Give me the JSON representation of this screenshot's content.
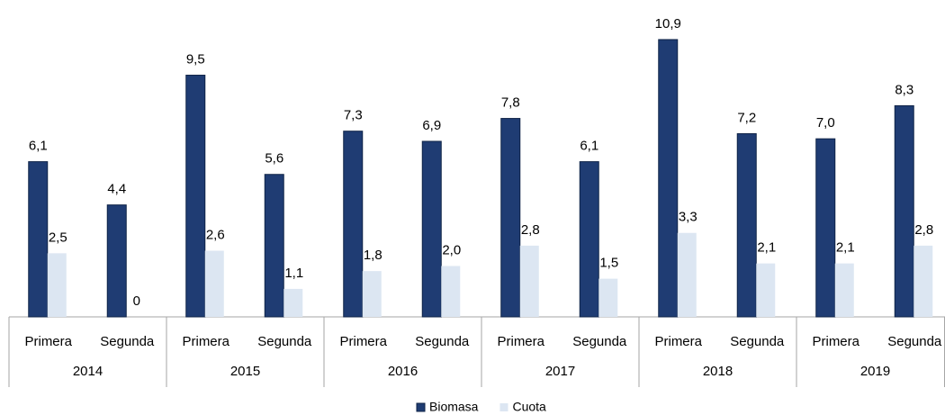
{
  "chart_data": {
    "type": "bar",
    "categories": [
      "Primera",
      "Segunda",
      "Primera",
      "Segunda",
      "Primera",
      "Segunda",
      "Primera",
      "Segunda",
      "Primera",
      "Segunda",
      "Primera",
      "Segunda"
    ],
    "groups": [
      "2014",
      "2015",
      "2016",
      "2017",
      "2018",
      "2019"
    ],
    "series": [
      {
        "name": "Biomasa",
        "color": "#1f3c73",
        "values": [
          6.1,
          4.4,
          9.5,
          5.6,
          7.3,
          6.9,
          7.8,
          6.1,
          10.9,
          7.2,
          7.0,
          8.3
        ],
        "value_labels": [
          "6,1",
          "4,4",
          "9,5",
          "5,6",
          "7,3",
          "6,9",
          "7,8",
          "6,1",
          "10,9",
          "7,2",
          "7,0",
          "8,3"
        ]
      },
      {
        "name": "Cuota",
        "color": "#dce6f2",
        "values": [
          2.5,
          0,
          2.6,
          1.1,
          1.8,
          2.0,
          2.8,
          1.5,
          3.3,
          2.1,
          2.1,
          2.8
        ],
        "value_labels": [
          "2,5",
          "0",
          "2,6",
          "1,1",
          "1,8",
          "2,0",
          "2,8",
          "1,5",
          "3,3",
          "2,1",
          "2,1",
          "2,8"
        ]
      }
    ],
    "ylim": [
      0,
      11.5
    ],
    "legend": "bottom"
  }
}
